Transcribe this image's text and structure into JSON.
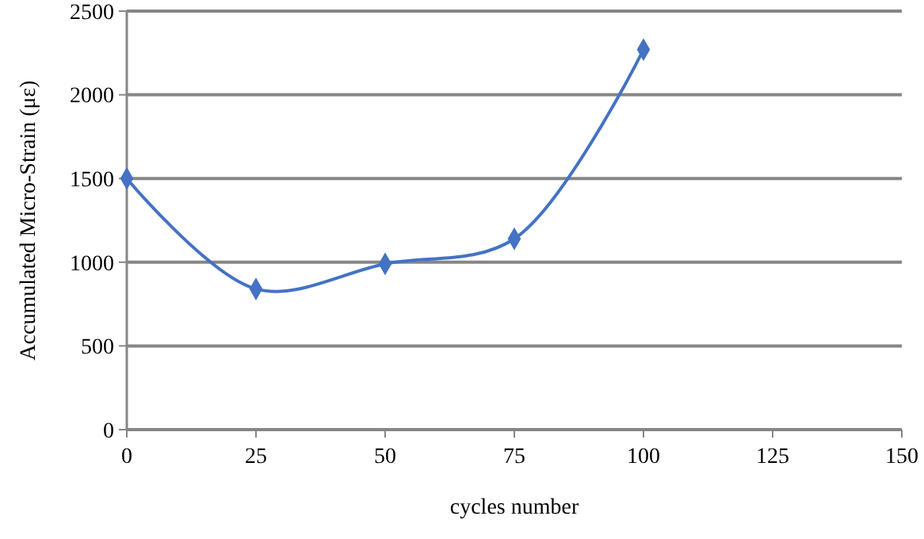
{
  "chart_data": {
    "type": "line",
    "xlabel": "cycles number",
    "ylabel": "Accumulated Micro-Strain (με)",
    "x": [
      0,
      25,
      50,
      75,
      100
    ],
    "series": [
      {
        "color": "#4472c4",
        "values": [
          1500,
          840,
          990,
          1140,
          2270
        ]
      }
    ],
    "xlim": [
      0,
      150
    ],
    "xticks": [
      0,
      25,
      50,
      75,
      100,
      125,
      150
    ],
    "ylim": [
      0,
      2500
    ],
    "yticks": [
      0,
      500,
      1000,
      1500,
      2000,
      2500
    ],
    "grid": "y",
    "marker": "diamond",
    "line_style": "solid"
  }
}
